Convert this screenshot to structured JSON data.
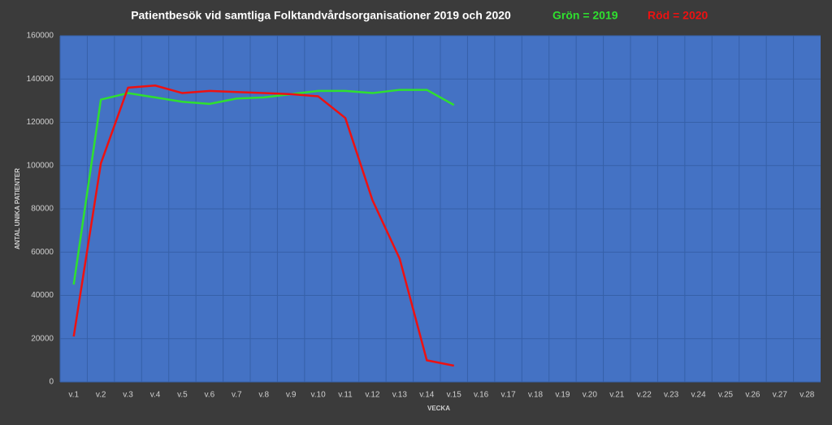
{
  "chart_data": {
    "type": "line",
    "title": "Patientbesök vid samtliga Folktandvårdsorganisationer 2019 och 2020",
    "x_label": "VECKA",
    "y_label": "ANTAL UNIKA PATIENTER",
    "categories": [
      "v.1",
      "v.2",
      "v.3",
      "v.4",
      "v.5",
      "v.6",
      "v.7",
      "v.8",
      "v.9",
      "v.10",
      "v.11",
      "v.12",
      "v.13",
      "v.14",
      "v.15",
      "v.16",
      "v.17",
      "v.18",
      "v.19",
      "v.20",
      "v.21",
      "v.22",
      "v.23",
      "v.24",
      "v.25",
      "v.26",
      "v.27",
      "v.28"
    ],
    "series": [
      {
        "name": "Grön = 2019",
        "color": "#2fe02f",
        "values": [
          45000,
          130500,
          133500,
          131500,
          129500,
          128500,
          131000,
          131500,
          133000,
          134500,
          134500,
          133500,
          135000,
          135000,
          128000,
          null,
          null,
          null,
          null,
          null,
          null,
          null,
          null,
          null,
          null,
          null,
          null,
          null
        ]
      },
      {
        "name": "Röd = 2020",
        "color": "#ee1111",
        "values": [
          21000,
          101000,
          136000,
          137000,
          133500,
          134500,
          134000,
          133500,
          133000,
          132000,
          122000,
          84000,
          57000,
          10000,
          7500,
          null,
          null,
          null,
          null,
          null,
          null,
          null,
          null,
          null,
          null,
          null,
          null,
          null
        ]
      }
    ],
    "ylim": [
      0,
      160000
    ],
    "yticks": [
      0,
      20000,
      40000,
      60000,
      80000,
      100000,
      120000,
      140000,
      160000
    ],
    "grid": true,
    "plot_color": "#4472c4"
  }
}
